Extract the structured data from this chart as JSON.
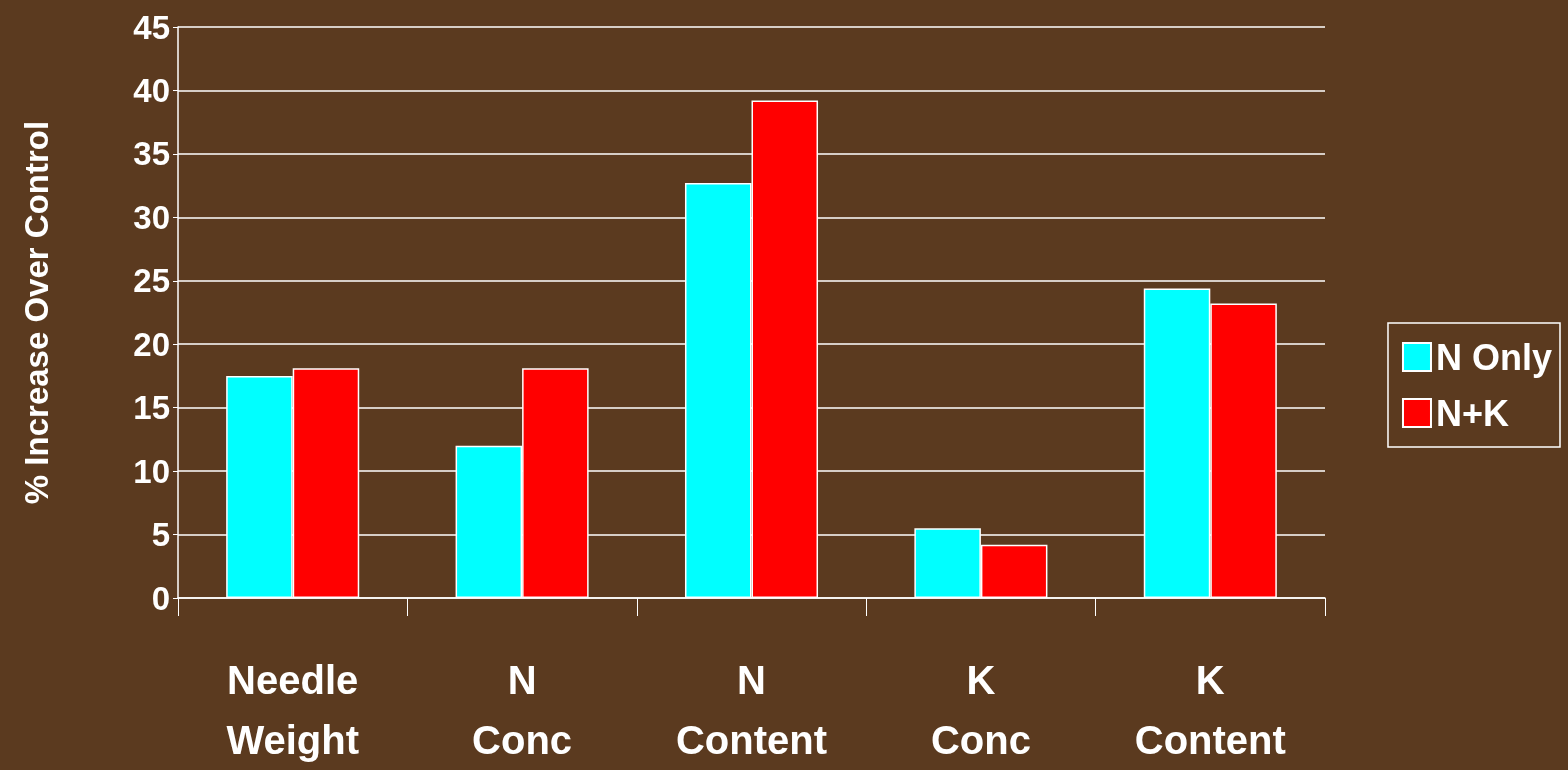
{
  "chart_data": {
    "type": "bar",
    "ylabel": "% Increase Over Control",
    "categories": [
      "Needle\nWeight",
      "N\nConc",
      "N\nContent",
      "K\nConc",
      "K\nContent"
    ],
    "series": [
      {
        "name": "N Only",
        "color": "#00ffff",
        "values": [
          17.5,
          12.0,
          32.7,
          5.5,
          24.4
        ]
      },
      {
        "name": "N+K",
        "color": "#ff0000",
        "values": [
          18.1,
          18.1,
          39.2,
          4.2,
          23.2
        ]
      }
    ],
    "ylim": [
      0,
      45
    ],
    "yticks": [
      0,
      5,
      10,
      15,
      20,
      25,
      30,
      35,
      40,
      45
    ],
    "grid": "y",
    "legend": "right"
  }
}
